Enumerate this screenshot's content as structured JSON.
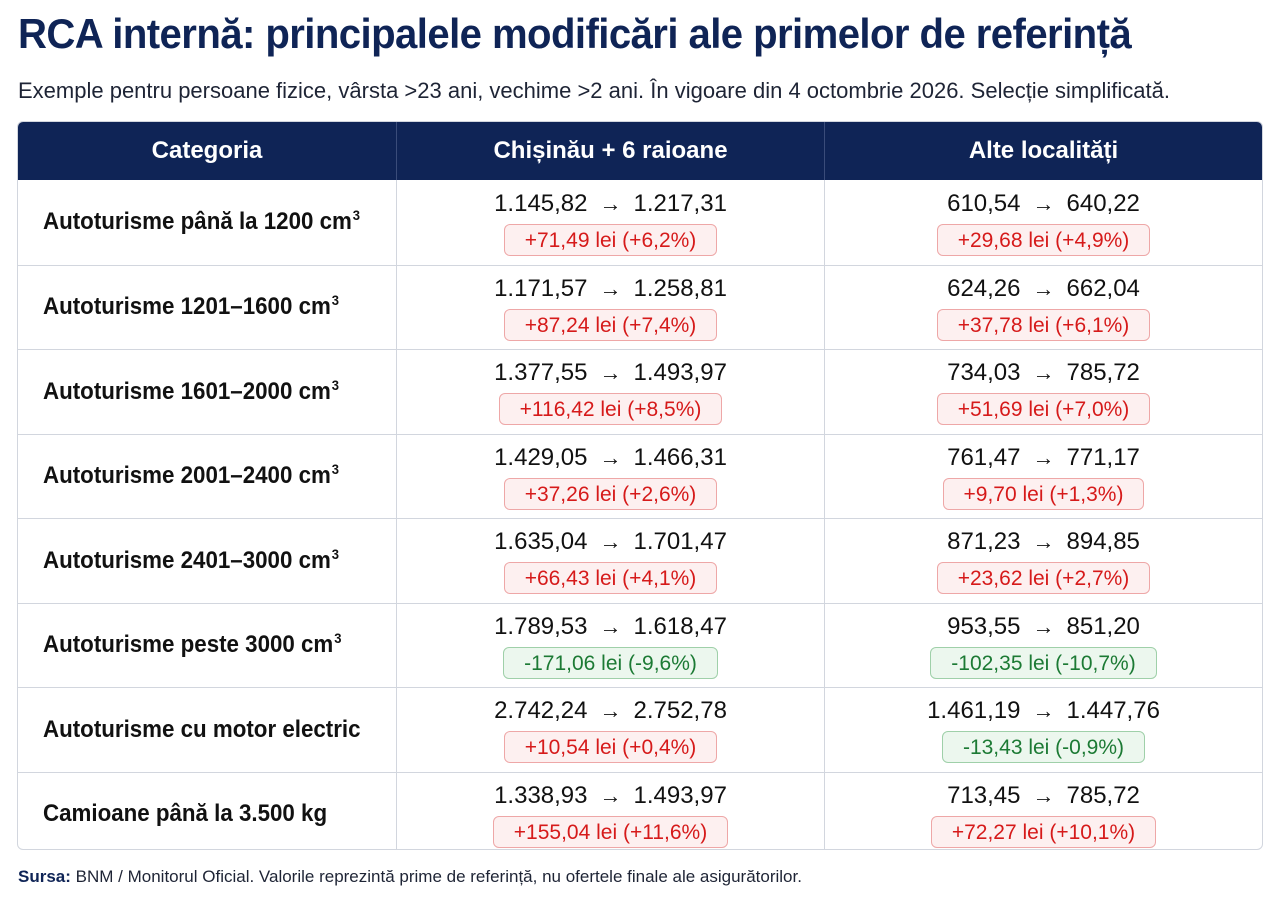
{
  "title": "RCA internă: principalele modificări ale primelor de referință",
  "subtitle": "Exemple pentru persoane fizice, vârsta >23 ani, vechime >2 ani. În vigoare din 4 octombrie 2026. Selecție simplificată.",
  "table": {
    "headers": [
      "Categoria",
      "Chișinău + 6 raioane",
      "Alte localități"
    ],
    "arrow": "→",
    "rows": [
      {
        "category": "Autoturisme până la 1200 cm",
        "sup": "3",
        "chisinau": {
          "old": "1.145,82",
          "new": "1.217,31",
          "change": "+71,49 lei (+6,2%)",
          "dir": "up"
        },
        "alte": {
          "old": "610,54",
          "new": "640,22",
          "change": "+29,68 lei (+4,9%)",
          "dir": "up"
        }
      },
      {
        "category": "Autoturisme 1201–1600 cm",
        "sup": "3",
        "chisinau": {
          "old": "1.171,57",
          "new": "1.258,81",
          "change": "+87,24 lei (+7,4%)",
          "dir": "up"
        },
        "alte": {
          "old": "624,26",
          "new": "662,04",
          "change": "+37,78 lei (+6,1%)",
          "dir": "up"
        }
      },
      {
        "category": "Autoturisme 1601–2000 cm",
        "sup": "3",
        "chisinau": {
          "old": "1.377,55",
          "new": "1.493,97",
          "change": "+116,42 lei (+8,5%)",
          "dir": "up"
        },
        "alte": {
          "old": "734,03",
          "new": "785,72",
          "change": "+51,69 lei (+7,0%)",
          "dir": "up"
        }
      },
      {
        "category": "Autoturisme 2001–2400 cm",
        "sup": "3",
        "chisinau": {
          "old": "1.429,05",
          "new": "1.466,31",
          "change": "+37,26 lei (+2,6%)",
          "dir": "up"
        },
        "alte": {
          "old": "761,47",
          "new": "771,17",
          "change": "+9,70 lei (+1,3%)",
          "dir": "up"
        }
      },
      {
        "category": "Autoturisme 2401–3000 cm",
        "sup": "3",
        "chisinau": {
          "old": "1.635,04",
          "new": "1.701,47",
          "change": "+66,43 lei (+4,1%)",
          "dir": "up"
        },
        "alte": {
          "old": "871,23",
          "new": "894,85",
          "change": "+23,62 lei (+2,7%)",
          "dir": "up"
        }
      },
      {
        "category": "Autoturisme peste 3000 cm",
        "sup": "3",
        "chisinau": {
          "old": "1.789,53",
          "new": "1.618,47",
          "change": "-171,06 lei (-9,6%)",
          "dir": "down"
        },
        "alte": {
          "old": "953,55",
          "new": "851,20",
          "change": "-102,35 lei (-10,7%)",
          "dir": "down"
        }
      },
      {
        "category": "Autoturisme cu motor electric",
        "sup": "",
        "chisinau": {
          "old": "2.742,24",
          "new": "2.752,78",
          "change": "+10,54 lei (+0,4%)",
          "dir": "up"
        },
        "alte": {
          "old": "1.461,19",
          "new": "1.447,76",
          "change": "-13,43 lei (-0,9%)",
          "dir": "down"
        }
      },
      {
        "category": "Camioane până la 3.500 kg",
        "sup": "",
        "chisinau": {
          "old": "1.338,93",
          "new": "1.493,97",
          "change": "+155,04 lei (+11,6%)",
          "dir": "up"
        },
        "alte": {
          "old": "713,45",
          "new": "785,72",
          "change": "+72,27 lei (+10,1%)",
          "dir": "up"
        }
      }
    ]
  },
  "footer": {
    "label": "Sursa:",
    "text": "BNM / Monitorul Oficial. Valorile reprezintă prime de referință, nu ofertele finale ale asigurătorilor."
  },
  "colors": {
    "header_bg": "#0f2456",
    "increase": "#d61a1a",
    "decrease": "#1c7a34"
  }
}
